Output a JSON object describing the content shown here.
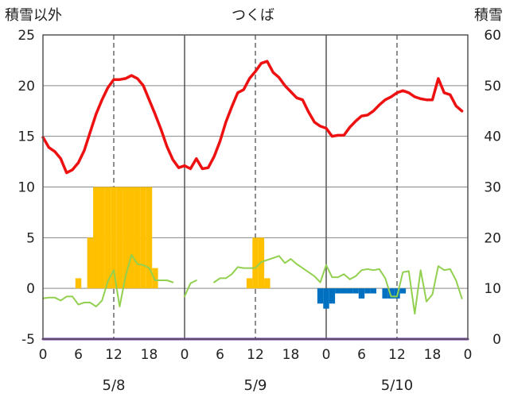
{
  "chart_data": {
    "type": "mixed",
    "title": "つくば",
    "y_left_label": "積雪以外",
    "y_right_label": "積雪",
    "y_left_ticks": [
      "25",
      "20",
      "15",
      "10",
      "5",
      "0",
      "-5"
    ],
    "y_right_ticks": [
      "60",
      "50",
      "40",
      "30",
      "20",
      "10",
      "0"
    ],
    "ylim_left": [
      -5,
      25
    ],
    "ylim_right": [
      0,
      60
    ],
    "x_tick_labels": [
      "0",
      "6",
      "12",
      "18",
      "0",
      "6",
      "12",
      "18",
      "0",
      "6",
      "12",
      "18",
      "0"
    ],
    "x_range_hours": [
      0,
      72
    ],
    "date_labels": [
      {
        "text": "5/8",
        "hour": 12
      },
      {
        "text": "5/9",
        "hour": 36
      },
      {
        "text": "5/10",
        "hour": 60
      }
    ],
    "grid": "dashed vertical at 12h, solid vertical at day boundaries, horizontal gridlines",
    "colors": {
      "temperature": "#ee1111",
      "bars_positive": "#ffc000",
      "bars_negative": "#0070c0",
      "green_line": "#92d050",
      "snow_line": "#7030a0"
    },
    "series": [
      {
        "type": "line",
        "color": "#ee1111",
        "axis": "left",
        "points": [
          [
            0,
            14.9
          ],
          [
            0.5,
            14.4
          ],
          [
            1,
            13.9
          ],
          [
            2,
            13.5
          ],
          [
            3,
            12.8
          ],
          [
            4,
            11.4
          ],
          [
            5,
            11.7
          ],
          [
            6,
            12.4
          ],
          [
            7,
            13.6
          ],
          [
            8,
            15.4
          ],
          [
            9,
            17.2
          ],
          [
            10,
            18.6
          ],
          [
            11,
            19.8
          ],
          [
            12,
            20.6
          ],
          [
            13,
            20.6
          ],
          [
            14,
            20.7
          ],
          [
            15,
            21.0
          ],
          [
            16,
            20.7
          ],
          [
            17,
            20.0
          ],
          [
            18,
            18.6
          ],
          [
            19,
            17.2
          ],
          [
            20,
            15.7
          ],
          [
            21,
            14.0
          ],
          [
            22,
            12.7
          ],
          [
            23,
            11.9
          ],
          [
            24,
            12.1
          ],
          [
            25,
            11.8
          ],
          [
            26,
            12.8
          ],
          [
            27,
            11.8
          ],
          [
            28,
            11.9
          ],
          [
            29,
            13.0
          ],
          [
            30,
            14.5
          ],
          [
            31,
            16.4
          ],
          [
            32,
            17.9
          ],
          [
            33,
            19.3
          ],
          [
            34,
            19.6
          ],
          [
            35,
            20.7
          ],
          [
            36,
            21.4
          ],
          [
            37,
            22.2
          ],
          [
            38,
            22.4
          ],
          [
            39,
            21.3
          ],
          [
            40,
            20.8
          ],
          [
            41,
            20.0
          ],
          [
            42,
            19.4
          ],
          [
            43,
            18.8
          ],
          [
            44,
            18.6
          ],
          [
            45,
            17.4
          ],
          [
            46,
            16.4
          ],
          [
            47,
            16.0
          ],
          [
            48,
            15.8
          ],
          [
            49,
            15.0
          ],
          [
            50,
            15.1
          ],
          [
            51,
            15.1
          ],
          [
            52,
            15.9
          ],
          [
            53,
            16.5
          ],
          [
            54,
            17.0
          ],
          [
            55,
            17.1
          ],
          [
            56,
            17.5
          ],
          [
            57,
            18.1
          ],
          [
            58,
            18.6
          ],
          [
            59,
            18.9
          ],
          [
            60,
            19.3
          ],
          [
            61,
            19.5
          ],
          [
            62,
            19.3
          ],
          [
            63,
            18.9
          ],
          [
            64,
            18.7
          ],
          [
            65,
            18.6
          ],
          [
            66,
            18.6
          ],
          [
            67,
            20.7
          ],
          [
            68,
            19.3
          ],
          [
            69,
            19.1
          ],
          [
            70,
            18.0
          ],
          [
            71,
            17.5
          ]
        ]
      },
      {
        "type": "bar",
        "color_positive": "#ffc000",
        "color_negative": "#0070c0",
        "axis": "left",
        "hours": [
          6,
          8,
          9,
          10,
          11,
          12,
          13,
          14,
          15,
          16,
          17,
          18,
          19,
          35,
          36,
          37,
          38,
          47,
          48,
          49,
          50,
          51,
          52,
          53,
          54,
          55,
          56,
          57,
          58,
          59,
          60,
          61
        ],
        "values": [
          1,
          5,
          10,
          10,
          10,
          10,
          10,
          10,
          10,
          10,
          10,
          10,
          2,
          1,
          5,
          5,
          1,
          -1.5,
          -2,
          -1.5,
          -0.5,
          -0.5,
          -0.5,
          -0.5,
          -1,
          -0.5,
          -0.5,
          0,
          -1,
          -1,
          -1,
          -0.5
        ]
      },
      {
        "type": "line",
        "color": "#92d050",
        "axis": "left",
        "segments": [
          [
            [
              0,
              -1.0
            ],
            [
              1,
              -0.9
            ],
            [
              2,
              -0.9
            ],
            [
              3,
              -1.2
            ],
            [
              4,
              -0.8
            ],
            [
              5,
              -0.8
            ],
            [
              6,
              -1.6
            ],
            [
              7,
              -1.4
            ],
            [
              8,
              -1.4
            ],
            [
              9,
              -1.8
            ],
            [
              10,
              -1.2
            ],
            [
              11,
              0.7
            ],
            [
              12,
              1.8
            ],
            [
              13,
              -1.8
            ],
            [
              14,
              1.2
            ],
            [
              15,
              3.3
            ],
            [
              16,
              2.4
            ],
            [
              17,
              2.3
            ],
            [
              18,
              2.0
            ],
            [
              19,
              0.8
            ],
            [
              20,
              0.8
            ],
            [
              21,
              0.8
            ],
            [
              22,
              0.6
            ]
          ],
          [
            [
              24,
              -0.8
            ],
            [
              25,
              0.5
            ],
            [
              26,
              0.8
            ]
          ],
          [
            [
              29,
              0.6
            ],
            [
              30,
              1.0
            ],
            [
              31,
              1.0
            ],
            [
              32,
              1.4
            ],
            [
              33,
              2.1
            ],
            [
              34,
              2.0
            ],
            [
              35,
              2.0
            ],
            [
              36,
              2.0
            ],
            [
              37,
              2.6
            ],
            [
              38,
              2.8
            ],
            [
              39,
              3.0
            ],
            [
              40,
              3.2
            ],
            [
              41,
              2.5
            ],
            [
              42,
              2.9
            ],
            [
              43,
              2.4
            ],
            [
              44,
              2.0
            ],
            [
              45,
              1.6
            ],
            [
              46,
              1.2
            ],
            [
              47,
              0.6
            ],
            [
              48,
              2.3
            ],
            [
              49,
              1.1
            ],
            [
              50,
              1.1
            ],
            [
              51,
              1.4
            ],
            [
              52,
              0.9
            ],
            [
              53,
              1.2
            ],
            [
              54,
              1.8
            ],
            [
              55,
              1.9
            ],
            [
              56,
              1.8
            ],
            [
              57,
              1.9
            ],
            [
              58,
              1.0
            ],
            [
              59,
              -0.8
            ],
            [
              60,
              -0.8
            ],
            [
              61,
              1.6
            ],
            [
              62,
              1.7
            ],
            [
              63,
              -2.5
            ],
            [
              64,
              1.8
            ],
            [
              65,
              -1.3
            ],
            [
              66,
              -0.6
            ],
            [
              67,
              2.2
            ],
            [
              68,
              1.8
            ],
            [
              69,
              1.9
            ],
            [
              70,
              0.8
            ],
            [
              71,
              -1.0
            ]
          ]
        ]
      },
      {
        "type": "line",
        "color": "#7030a0",
        "axis": "right",
        "points": [
          [
            0,
            0
          ],
          [
            72,
            0
          ]
        ]
      }
    ]
  }
}
